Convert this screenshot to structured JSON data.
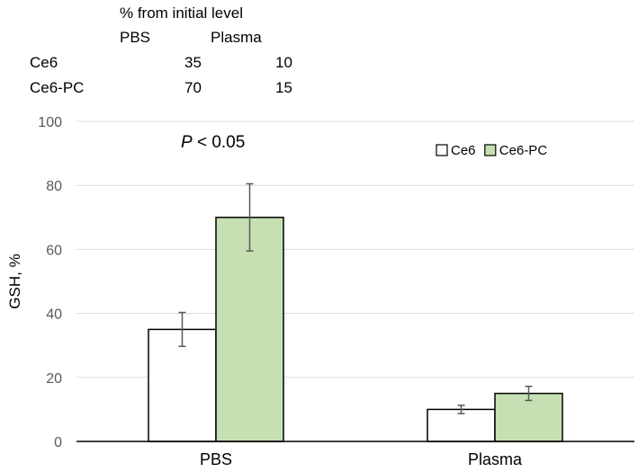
{
  "table": {
    "title": "% from initial level",
    "col_headers": [
      "PBS",
      "Plasma"
    ],
    "rows": [
      {
        "label": "Ce6",
        "values": [
          "35",
          "10"
        ]
      },
      {
        "label": "Ce6-PC",
        "values": [
          "70",
          "15"
        ]
      }
    ]
  },
  "annotation": {
    "italic": "P",
    "rest": " < 0.05"
  },
  "chart_data": {
    "type": "bar",
    "title": "",
    "xlabel": "",
    "ylabel": "GSH, %",
    "ylim": [
      0,
      100
    ],
    "yticks": [
      0,
      20,
      40,
      60,
      80,
      100
    ],
    "grid": true,
    "legend_position": "top-right",
    "categories": [
      "PBS",
      "Plasma"
    ],
    "series": [
      {
        "name": "Ce6",
        "values": [
          35,
          10
        ],
        "errors": [
          5.3,
          1.3
        ],
        "color": "#ffffff"
      },
      {
        "name": "Ce6-PC",
        "values": [
          70,
          15
        ],
        "errors": [
          10.5,
          2.2
        ],
        "color": "#c6e0b4"
      }
    ],
    "annotation": "P < 0.05"
  },
  "colors": {
    "bar_border": "#000000",
    "grid": "#d9d9d9",
    "error_bar": "#595959",
    "axis_text": "#595959"
  }
}
